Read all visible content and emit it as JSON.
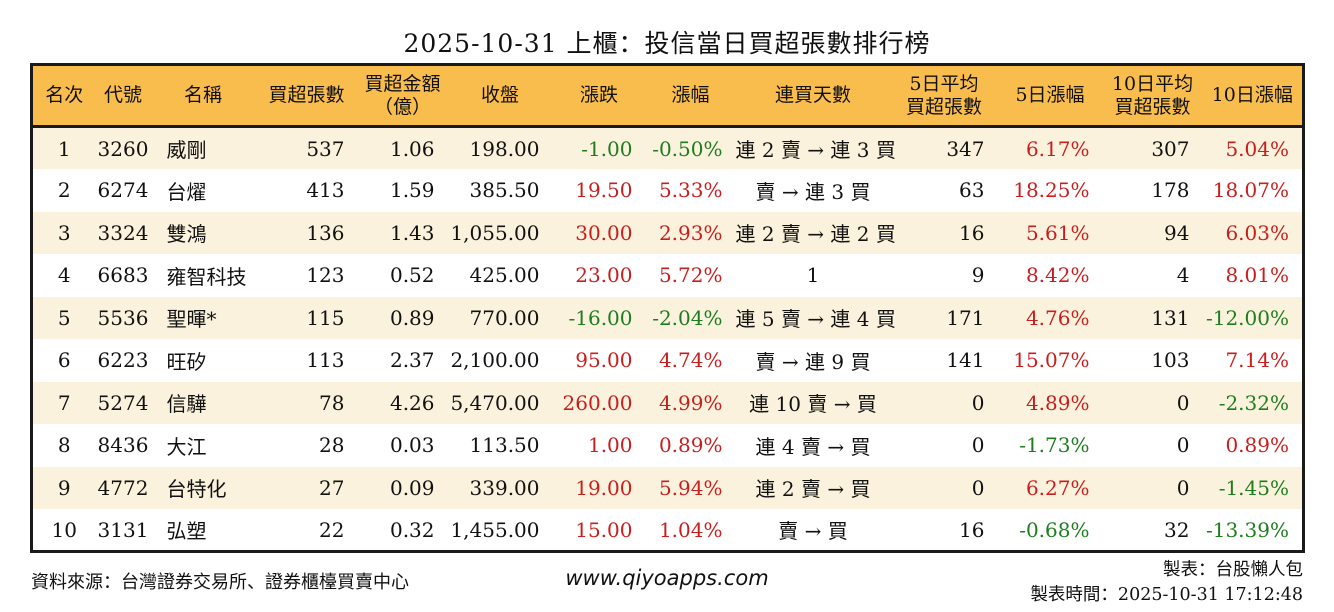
{
  "title": "2025-10-31 上櫃：投信當日買超張數排行榜",
  "colors": {
    "up": "#c81e1e",
    "down": "#1e7d1e",
    "header_bg": "#f9bd4d",
    "row_alt_bg": "#fbf2dd",
    "border": "#1a1a1a"
  },
  "chart_data": {
    "type": "table",
    "title": "2025-10-31 上櫃：投信當日買超張數排行榜",
    "columns": [
      {
        "key": "rank",
        "label": "名次",
        "align": "center"
      },
      {
        "key": "code",
        "label": "代號",
        "align": "center"
      },
      {
        "key": "name",
        "label": "名稱",
        "align": "left"
      },
      {
        "key": "buy-volume",
        "label": "買超張數",
        "align": "right"
      },
      {
        "key": "buy-amount",
        "label": "買超金額\n（億）",
        "align": "right"
      },
      {
        "key": "close",
        "label": "收盤",
        "align": "right"
      },
      {
        "key": "change",
        "label": "漲跌",
        "align": "right"
      },
      {
        "key": "change-pct",
        "label": "漲幅",
        "align": "right"
      },
      {
        "key": "streak",
        "label": "連買天數",
        "align": "center"
      },
      {
        "key": "avg5",
        "label": "5日平均\n買超張數",
        "align": "right"
      },
      {
        "key": "pct5",
        "label": "5日漲幅",
        "align": "right"
      },
      {
        "key": "avg10",
        "label": "10日平均\n買超張數",
        "align": "right"
      },
      {
        "key": "pct10",
        "label": "10日漲幅",
        "align": "right"
      }
    ],
    "rows": [
      {
        "cells": [
          {
            "t": "1"
          },
          {
            "t": "3260"
          },
          {
            "t": "威剛"
          },
          {
            "t": "537"
          },
          {
            "t": "1.06"
          },
          {
            "t": "198.00"
          },
          {
            "t": "-1.00",
            "c": "down"
          },
          {
            "t": "-0.50%",
            "c": "down"
          },
          {
            "t": "連 2 賣 → 連 3 買"
          },
          {
            "t": "347"
          },
          {
            "t": "6.17%",
            "c": "up"
          },
          {
            "t": "307"
          },
          {
            "t": "5.04%",
            "c": "up"
          }
        ]
      },
      {
        "cells": [
          {
            "t": "2"
          },
          {
            "t": "6274"
          },
          {
            "t": "台燿"
          },
          {
            "t": "413"
          },
          {
            "t": "1.59"
          },
          {
            "t": "385.50"
          },
          {
            "t": "19.50",
            "c": "up"
          },
          {
            "t": "5.33%",
            "c": "up"
          },
          {
            "t": "賣 → 連 3 買"
          },
          {
            "t": "63"
          },
          {
            "t": "18.25%",
            "c": "up"
          },
          {
            "t": "178"
          },
          {
            "t": "18.07%",
            "c": "up"
          }
        ]
      },
      {
        "cells": [
          {
            "t": "3"
          },
          {
            "t": "3324"
          },
          {
            "t": "雙鴻"
          },
          {
            "t": "136"
          },
          {
            "t": "1.43"
          },
          {
            "t": "1,055.00"
          },
          {
            "t": "30.00",
            "c": "up"
          },
          {
            "t": "2.93%",
            "c": "up"
          },
          {
            "t": "連 2 賣 → 連 2 買"
          },
          {
            "t": "16"
          },
          {
            "t": "5.61%",
            "c": "up"
          },
          {
            "t": "94"
          },
          {
            "t": "6.03%",
            "c": "up"
          }
        ]
      },
      {
        "cells": [
          {
            "t": "4"
          },
          {
            "t": "6683"
          },
          {
            "t": "雍智科技"
          },
          {
            "t": "123"
          },
          {
            "t": "0.52"
          },
          {
            "t": "425.00"
          },
          {
            "t": "23.00",
            "c": "up"
          },
          {
            "t": "5.72%",
            "c": "up"
          },
          {
            "t": "1"
          },
          {
            "t": "9"
          },
          {
            "t": "8.42%",
            "c": "up"
          },
          {
            "t": "4"
          },
          {
            "t": "8.01%",
            "c": "up"
          }
        ]
      },
      {
        "cells": [
          {
            "t": "5"
          },
          {
            "t": "5536"
          },
          {
            "t": "聖暉*"
          },
          {
            "t": "115"
          },
          {
            "t": "0.89"
          },
          {
            "t": "770.00"
          },
          {
            "t": "-16.00",
            "c": "down"
          },
          {
            "t": "-2.04%",
            "c": "down"
          },
          {
            "t": "連 5 賣 → 連 4 買"
          },
          {
            "t": "171"
          },
          {
            "t": "4.76%",
            "c": "up"
          },
          {
            "t": "131"
          },
          {
            "t": "-12.00%",
            "c": "down"
          }
        ]
      },
      {
        "cells": [
          {
            "t": "6"
          },
          {
            "t": "6223"
          },
          {
            "t": "旺矽"
          },
          {
            "t": "113"
          },
          {
            "t": "2.37"
          },
          {
            "t": "2,100.00"
          },
          {
            "t": "95.00",
            "c": "up"
          },
          {
            "t": "4.74%",
            "c": "up"
          },
          {
            "t": "賣 → 連 9 買"
          },
          {
            "t": "141"
          },
          {
            "t": "15.07%",
            "c": "up"
          },
          {
            "t": "103"
          },
          {
            "t": "7.14%",
            "c": "up"
          }
        ]
      },
      {
        "cells": [
          {
            "t": "7"
          },
          {
            "t": "5274"
          },
          {
            "t": "信驊"
          },
          {
            "t": "78"
          },
          {
            "t": "4.26"
          },
          {
            "t": "5,470.00"
          },
          {
            "t": "260.00",
            "c": "up"
          },
          {
            "t": "4.99%",
            "c": "up"
          },
          {
            "t": "連 10 賣 → 買"
          },
          {
            "t": "0"
          },
          {
            "t": "4.89%",
            "c": "up"
          },
          {
            "t": "0"
          },
          {
            "t": "-2.32%",
            "c": "down"
          }
        ]
      },
      {
        "cells": [
          {
            "t": "8"
          },
          {
            "t": "8436"
          },
          {
            "t": "大江"
          },
          {
            "t": "28"
          },
          {
            "t": "0.03"
          },
          {
            "t": "113.50"
          },
          {
            "t": "1.00",
            "c": "up"
          },
          {
            "t": "0.89%",
            "c": "up"
          },
          {
            "t": "連 4 賣 → 買"
          },
          {
            "t": "0"
          },
          {
            "t": "-1.73%",
            "c": "down"
          },
          {
            "t": "0"
          },
          {
            "t": "0.89%",
            "c": "up"
          }
        ]
      },
      {
        "cells": [
          {
            "t": "9"
          },
          {
            "t": "4772"
          },
          {
            "t": "台特化"
          },
          {
            "t": "27"
          },
          {
            "t": "0.09"
          },
          {
            "t": "339.00"
          },
          {
            "t": "19.00",
            "c": "up"
          },
          {
            "t": "5.94%",
            "c": "up"
          },
          {
            "t": "連 2 賣 → 買"
          },
          {
            "t": "0"
          },
          {
            "t": "6.27%",
            "c": "up"
          },
          {
            "t": "0"
          },
          {
            "t": "-1.45%",
            "c": "down"
          }
        ]
      },
      {
        "cells": [
          {
            "t": "10"
          },
          {
            "t": "3131"
          },
          {
            "t": "弘塑"
          },
          {
            "t": "22"
          },
          {
            "t": "0.32"
          },
          {
            "t": "1,455.00"
          },
          {
            "t": "15.00",
            "c": "up"
          },
          {
            "t": "1.04%",
            "c": "up"
          },
          {
            "t": "賣 → 買"
          },
          {
            "t": "16"
          },
          {
            "t": "-0.68%",
            "c": "down"
          },
          {
            "t": "32"
          },
          {
            "t": "-13.39%",
            "c": "down"
          }
        ]
      }
    ]
  },
  "footer": {
    "source": "資料來源：台灣證券交易所、證券櫃檯買賣中心",
    "url": "www.qiyoapps.com",
    "author": "製表：台股懶人包",
    "timestamp": "製表時間：2025-10-31 17:12:48"
  }
}
